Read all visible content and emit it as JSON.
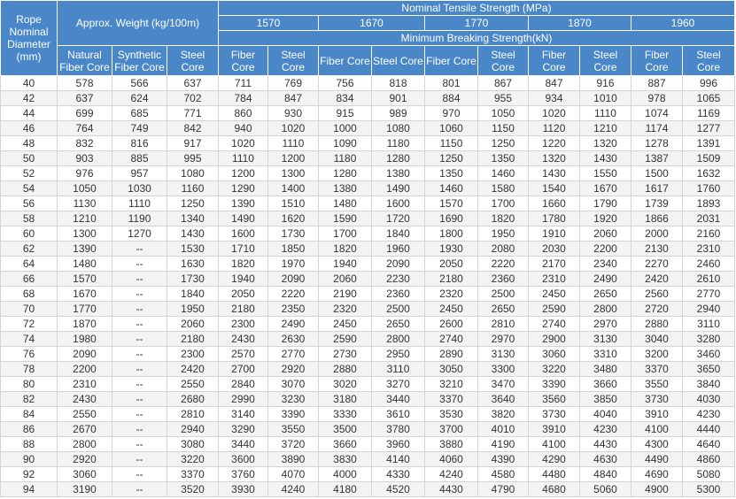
{
  "header": {
    "diameter": "Rope Nominal Diameter (mm)",
    "weight": "Approx. Weight (kg/100m)",
    "weight_columns": [
      "Natural Fiber Core",
      "Synthetic Fiber Core",
      "Steel Core"
    ],
    "tensile": "Nominal Tensile Strength  (MPa)",
    "grades": [
      1570,
      1670,
      1770,
      1870,
      1960
    ],
    "breaking": "Minimum Breaking Strength(kN)",
    "breaking_columns": [
      "Fiber Core",
      "Steel Core",
      "Fiber Core",
      "Steel Core",
      "Fiber Core",
      "Steel Core",
      "Fiber Core",
      "Steel Core",
      "Fiber Core",
      "Steel Core"
    ]
  },
  "table": {
    "rows": [
      [
        40,
        578,
        566,
        637,
        711,
        769,
        756,
        818,
        801,
        867,
        847,
        916,
        887,
        996
      ],
      [
        42,
        637,
        624,
        702,
        784,
        847,
        834,
        901,
        884,
        955,
        934,
        1010,
        978,
        1065
      ],
      [
        44,
        699,
        685,
        771,
        860,
        930,
        915,
        989,
        970,
        1050,
        1020,
        1110,
        1074,
        1169
      ],
      [
        46,
        764,
        749,
        842,
        940,
        1020,
        1000,
        1080,
        1060,
        1150,
        1120,
        1210,
        1174,
        1277
      ],
      [
        48,
        832,
        816,
        917,
        1020,
        1110,
        1090,
        1180,
        1150,
        1250,
        1220,
        1320,
        1278,
        1391
      ],
      [
        50,
        903,
        885,
        995,
        1110,
        1200,
        1180,
        1280,
        1250,
        1350,
        1320,
        1430,
        1387,
        1509
      ],
      [
        52,
        976,
        957,
        1080,
        1200,
        1300,
        1280,
        1380,
        1350,
        1460,
        1430,
        1550,
        1500,
        1632
      ],
      [
        54,
        1050,
        1030,
        1160,
        1290,
        1400,
        1380,
        1490,
        1460,
        1580,
        1540,
        1670,
        1617,
        1760
      ],
      [
        56,
        1130,
        1110,
        1250,
        1390,
        1510,
        1480,
        1600,
        1570,
        1700,
        1660,
        1790,
        1739,
        1893
      ],
      [
        58,
        1210,
        1190,
        1340,
        1490,
        1620,
        1590,
        1720,
        1690,
        1820,
        1780,
        1920,
        1866,
        2031
      ],
      [
        60,
        1300,
        1270,
        1430,
        1600,
        1730,
        1700,
        1840,
        1800,
        1950,
        1910,
        2060,
        2000,
        2160
      ],
      [
        62,
        1390,
        "--",
        1530,
        1710,
        1850,
        1820,
        1960,
        1930,
        2080,
        2030,
        2200,
        2130,
        2310
      ],
      [
        64,
        1480,
        "--",
        1630,
        1820,
        1970,
        1940,
        2090,
        2050,
        2220,
        2170,
        2340,
        2270,
        2460
      ],
      [
        66,
        1570,
        "--",
        1730,
        1940,
        2090,
        2060,
        2230,
        2180,
        2360,
        2310,
        2490,
        2420,
        2610
      ],
      [
        68,
        1670,
        "--",
        1840,
        2050,
        2220,
        2190,
        2360,
        2320,
        2500,
        2450,
        2650,
        2560,
        2770
      ],
      [
        70,
        1770,
        "--",
        1950,
        2180,
        2350,
        2320,
        2500,
        2450,
        2650,
        2590,
        2800,
        2720,
        2940
      ],
      [
        72,
        1870,
        "--",
        2060,
        2300,
        2490,
        2450,
        2650,
        2600,
        2810,
        2740,
        2970,
        2880,
        3110
      ],
      [
        74,
        1980,
        "--",
        2180,
        2430,
        2630,
        2590,
        2800,
        2740,
        2970,
        2900,
        3130,
        3040,
        3280
      ],
      [
        76,
        2090,
        "--",
        2300,
        2570,
        2770,
        2730,
        2950,
        2890,
        3130,
        3060,
        3310,
        3200,
        3460
      ],
      [
        78,
        2200,
        "--",
        2420,
        2700,
        2920,
        2880,
        3110,
        3050,
        3300,
        3220,
        3480,
        3370,
        3650
      ],
      [
        80,
        2310,
        "--",
        2550,
        2840,
        3070,
        3020,
        3270,
        3210,
        3470,
        3390,
        3660,
        3550,
        3840
      ],
      [
        82,
        2430,
        "--",
        2680,
        2990,
        3230,
        3180,
        3440,
        3370,
        3640,
        3560,
        3850,
        3730,
        4030
      ],
      [
        84,
        2550,
        "--",
        2810,
        3140,
        3390,
        3330,
        3610,
        3530,
        3820,
        3730,
        4040,
        3910,
        4230
      ],
      [
        86,
        2670,
        "--",
        2940,
        3290,
        3550,
        3500,
        3780,
        3700,
        4010,
        3910,
        4230,
        4100,
        4440
      ],
      [
        88,
        2800,
        "--",
        3080,
        3440,
        3720,
        3660,
        3960,
        3880,
        4190,
        4100,
        4430,
        4300,
        4640
      ],
      [
        90,
        2920,
        "--",
        3220,
        3600,
        3890,
        3830,
        4140,
        4060,
        4390,
        4290,
        4630,
        4490,
        4860
      ],
      [
        92,
        3060,
        "--",
        3370,
        3760,
        4070,
        4000,
        4330,
        4240,
        4580,
        4480,
        4840,
        4690,
        5080
      ],
      [
        94,
        3190,
        "--",
        3520,
        3930,
        4240,
        4180,
        4520,
        4430,
        4790,
        4680,
        5060,
        4900,
        5300
      ]
    ]
  }
}
